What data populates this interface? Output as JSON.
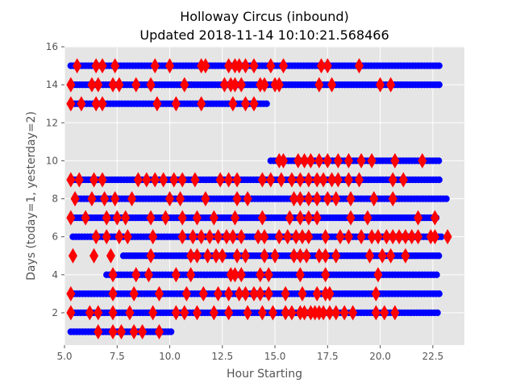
{
  "chart_data": {
    "type": "scatter",
    "title": "Holloway Circus (inbound)",
    "subtitle": "Updated 2018-11-14 10:10:21.568466",
    "xlabel": "Hour Starting",
    "ylabel": "Days (today=1, yesterday=2)",
    "xlim": [
      5.0,
      24.0
    ],
    "ylim": [
      0.3,
      16.0
    ],
    "xticks": [
      "5.0",
      "7.5",
      "10.0",
      "12.5",
      "15.0",
      "17.5",
      "20.0",
      "22.5"
    ],
    "yticks": [
      "2",
      "4",
      "6",
      "8",
      "10",
      "12",
      "14",
      "16"
    ],
    "grid": true,
    "style": "ggplot",
    "background": "#E5E5E5",
    "colors": {
      "normal": "#0000FF",
      "delayed": "#FF0000"
    },
    "series": [
      {
        "marker": "circle",
        "color": "#0000FF",
        "rows": [
          {
            "y": 15,
            "x_start": 5.3,
            "x_end": 22.8
          },
          {
            "y": 14,
            "x_start": 5.3,
            "x_end": 22.9
          },
          {
            "y": 13,
            "x_start": 5.5,
            "x_end": 14.7
          },
          {
            "y": 10,
            "x_start": 14.8,
            "x_end": 22.8
          },
          {
            "y": 9,
            "x_start": 5.3,
            "x_end": 22.8
          },
          {
            "y": 8,
            "x_start": 5.5,
            "x_end": 23.2
          },
          {
            "y": 7,
            "x_start": 5.3,
            "x_end": 22.7
          },
          {
            "y": 6,
            "x_start": 5.4,
            "x_end": 22.9
          },
          {
            "y": 5,
            "x_start": 7.8,
            "x_end": 22.8
          },
          {
            "y": 4,
            "x_start": 7.0,
            "x_end": 22.7
          },
          {
            "y": 3,
            "x_start": 5.3,
            "x_end": 22.9
          },
          {
            "y": 2,
            "x_start": 5.5,
            "x_end": 22.8
          },
          {
            "y": 1,
            "x_start": 5.3,
            "x_end": 10.1
          }
        ]
      },
      {
        "marker": "thin_diamond",
        "color": "#FF0000",
        "points": [
          [
            5.6,
            15
          ],
          [
            6.5,
            15
          ],
          [
            6.8,
            15
          ],
          [
            7.4,
            15
          ],
          [
            9.3,
            15
          ],
          [
            10.0,
            15
          ],
          [
            11.5,
            15
          ],
          [
            11.7,
            15
          ],
          [
            12.8,
            15
          ],
          [
            13.1,
            15
          ],
          [
            13.3,
            15
          ],
          [
            13.6,
            15
          ],
          [
            14.0,
            15
          ],
          [
            14.8,
            15
          ],
          [
            15.4,
            15
          ],
          [
            17.2,
            15
          ],
          [
            17.5,
            15
          ],
          [
            19.0,
            15
          ],
          [
            5.3,
            14
          ],
          [
            6.3,
            14
          ],
          [
            6.6,
            14
          ],
          [
            7.3,
            14
          ],
          [
            7.6,
            14
          ],
          [
            8.4,
            14
          ],
          [
            9.1,
            14
          ],
          [
            10.7,
            14
          ],
          [
            12.6,
            14
          ],
          [
            12.9,
            14
          ],
          [
            13.1,
            14
          ],
          [
            13.4,
            14
          ],
          [
            14.3,
            14
          ],
          [
            14.5,
            14
          ],
          [
            15.0,
            14
          ],
          [
            15.2,
            14
          ],
          [
            17.1,
            14
          ],
          [
            17.7,
            14
          ],
          [
            20.0,
            14
          ],
          [
            20.5,
            14
          ],
          [
            5.3,
            13
          ],
          [
            5.8,
            13
          ],
          [
            6.5,
            13
          ],
          [
            6.8,
            13
          ],
          [
            9.4,
            13
          ],
          [
            10.3,
            13
          ],
          [
            11.5,
            13
          ],
          [
            13.0,
            13
          ],
          [
            13.6,
            13
          ],
          [
            14.0,
            13
          ],
          [
            15.2,
            10
          ],
          [
            15.4,
            10
          ],
          [
            16.1,
            10
          ],
          [
            16.4,
            10
          ],
          [
            16.7,
            10
          ],
          [
            17.1,
            10
          ],
          [
            17.5,
            10
          ],
          [
            18.0,
            10
          ],
          [
            18.5,
            10
          ],
          [
            19.1,
            10
          ],
          [
            19.6,
            10
          ],
          [
            20.7,
            10
          ],
          [
            22.0,
            10
          ],
          [
            5.3,
            9
          ],
          [
            5.7,
            9
          ],
          [
            6.4,
            9
          ],
          [
            6.8,
            9
          ],
          [
            8.5,
            9
          ],
          [
            8.9,
            9
          ],
          [
            9.3,
            9
          ],
          [
            9.7,
            9
          ],
          [
            10.2,
            9
          ],
          [
            10.6,
            9
          ],
          [
            11.2,
            9
          ],
          [
            12.4,
            9
          ],
          [
            12.8,
            9
          ],
          [
            13.2,
            9
          ],
          [
            14.4,
            9
          ],
          [
            14.8,
            9
          ],
          [
            15.3,
            9
          ],
          [
            15.8,
            9
          ],
          [
            16.2,
            9
          ],
          [
            16.6,
            9
          ],
          [
            17.0,
            9
          ],
          [
            17.3,
            9
          ],
          [
            17.7,
            9
          ],
          [
            18.0,
            9
          ],
          [
            18.5,
            9
          ],
          [
            19.0,
            9
          ],
          [
            20.6,
            9
          ],
          [
            21.1,
            9
          ],
          [
            5.5,
            8
          ],
          [
            6.3,
            8
          ],
          [
            6.9,
            8
          ],
          [
            7.4,
            8
          ],
          [
            8.2,
            8
          ],
          [
            10.0,
            8
          ],
          [
            10.5,
            8
          ],
          [
            11.7,
            8
          ],
          [
            13.2,
            8
          ],
          [
            13.7,
            8
          ],
          [
            15.9,
            8
          ],
          [
            16.2,
            8
          ],
          [
            16.6,
            8
          ],
          [
            17.0,
            8
          ],
          [
            17.5,
            8
          ],
          [
            17.9,
            8
          ],
          [
            18.6,
            8
          ],
          [
            19.7,
            8
          ],
          [
            20.6,
            8
          ],
          [
            5.3,
            7
          ],
          [
            6.0,
            7
          ],
          [
            7.0,
            7
          ],
          [
            7.5,
            7
          ],
          [
            7.9,
            7
          ],
          [
            9.1,
            7
          ],
          [
            9.8,
            7
          ],
          [
            10.6,
            7
          ],
          [
            11.3,
            7
          ],
          [
            12.1,
            7
          ],
          [
            13.1,
            7
          ],
          [
            14.4,
            7
          ],
          [
            15.7,
            7
          ],
          [
            16.2,
            7
          ],
          [
            16.6,
            7
          ],
          [
            17.0,
            7
          ],
          [
            18.6,
            7
          ],
          [
            19.4,
            7
          ],
          [
            21.8,
            7
          ],
          [
            22.6,
            7
          ],
          [
            6.5,
            6
          ],
          [
            7.0,
            6
          ],
          [
            7.6,
            6
          ],
          [
            8.0,
            6
          ],
          [
            9.2,
            6
          ],
          [
            10.6,
            6
          ],
          [
            11.1,
            6
          ],
          [
            11.5,
            6
          ],
          [
            11.9,
            6
          ],
          [
            12.3,
            6
          ],
          [
            12.7,
            6
          ],
          [
            13.0,
            6
          ],
          [
            13.4,
            6
          ],
          [
            14.2,
            6
          ],
          [
            14.5,
            6
          ],
          [
            15.2,
            6
          ],
          [
            15.6,
            6
          ],
          [
            16.0,
            6
          ],
          [
            16.3,
            6
          ],
          [
            16.6,
            6
          ],
          [
            17.4,
            6
          ],
          [
            18.1,
            6
          ],
          [
            18.5,
            6
          ],
          [
            19.1,
            6
          ],
          [
            19.6,
            6
          ],
          [
            19.9,
            6
          ],
          [
            20.3,
            6
          ],
          [
            20.6,
            6
          ],
          [
            20.9,
            6
          ],
          [
            21.2,
            6
          ],
          [
            21.5,
            6
          ],
          [
            21.8,
            6
          ],
          [
            22.4,
            6
          ],
          [
            22.6,
            6
          ],
          [
            23.2,
            6
          ],
          [
            5.4,
            5
          ],
          [
            6.4,
            5
          ],
          [
            7.2,
            5
          ],
          [
            9.1,
            5
          ],
          [
            11.0,
            5
          ],
          [
            11.3,
            5
          ],
          [
            11.8,
            5
          ],
          [
            12.2,
            5
          ],
          [
            12.5,
            5
          ],
          [
            13.2,
            5
          ],
          [
            13.6,
            5
          ],
          [
            14.5,
            5
          ],
          [
            15.0,
            5
          ],
          [
            15.9,
            5
          ],
          [
            16.2,
            5
          ],
          [
            16.5,
            5
          ],
          [
            17.1,
            5
          ],
          [
            17.4,
            5
          ],
          [
            17.9,
            5
          ],
          [
            19.5,
            5
          ],
          [
            20.1,
            5
          ],
          [
            20.5,
            5
          ],
          [
            21.2,
            5
          ],
          [
            7.3,
            4
          ],
          [
            8.4,
            4
          ],
          [
            9.0,
            4
          ],
          [
            10.3,
            4
          ],
          [
            11.0,
            4
          ],
          [
            12.9,
            4
          ],
          [
            13.1,
            4
          ],
          [
            13.4,
            4
          ],
          [
            14.3,
            4
          ],
          [
            14.7,
            4
          ],
          [
            16.2,
            4
          ],
          [
            17.4,
            4
          ],
          [
            19.9,
            4
          ],
          [
            5.3,
            3
          ],
          [
            7.3,
            3
          ],
          [
            8.3,
            3
          ],
          [
            9.5,
            3
          ],
          [
            10.8,
            3
          ],
          [
            11.6,
            3
          ],
          [
            12.3,
            3
          ],
          [
            12.8,
            3
          ],
          [
            13.3,
            3
          ],
          [
            13.6,
            3
          ],
          [
            14.0,
            3
          ],
          [
            14.3,
            3
          ],
          [
            14.7,
            3
          ],
          [
            15.5,
            3
          ],
          [
            16.3,
            3
          ],
          [
            17.0,
            3
          ],
          [
            17.4,
            3
          ],
          [
            17.6,
            3
          ],
          [
            19.8,
            3
          ],
          [
            5.3,
            2
          ],
          [
            6.2,
            2
          ],
          [
            6.6,
            2
          ],
          [
            7.3,
            2
          ],
          [
            8.1,
            2
          ],
          [
            9.2,
            2
          ],
          [
            10.3,
            2
          ],
          [
            10.7,
            2
          ],
          [
            11.3,
            2
          ],
          [
            12.1,
            2
          ],
          [
            12.8,
            2
          ],
          [
            13.7,
            2
          ],
          [
            14.4,
            2
          ],
          [
            14.9,
            2
          ],
          [
            15.5,
            2
          ],
          [
            15.8,
            2
          ],
          [
            16.2,
            2
          ],
          [
            16.4,
            2
          ],
          [
            16.7,
            2
          ],
          [
            16.9,
            2
          ],
          [
            17.1,
            2
          ],
          [
            17.3,
            2
          ],
          [
            17.6,
            2
          ],
          [
            17.9,
            2
          ],
          [
            18.3,
            2
          ],
          [
            18.7,
            2
          ],
          [
            19.8,
            2
          ],
          [
            20.2,
            2
          ],
          [
            20.7,
            2
          ],
          [
            6.6,
            1
          ],
          [
            7.3,
            1
          ],
          [
            7.7,
            1
          ],
          [
            8.3,
            1
          ],
          [
            8.7,
            1
          ],
          [
            9.5,
            1
          ]
        ]
      }
    ]
  }
}
